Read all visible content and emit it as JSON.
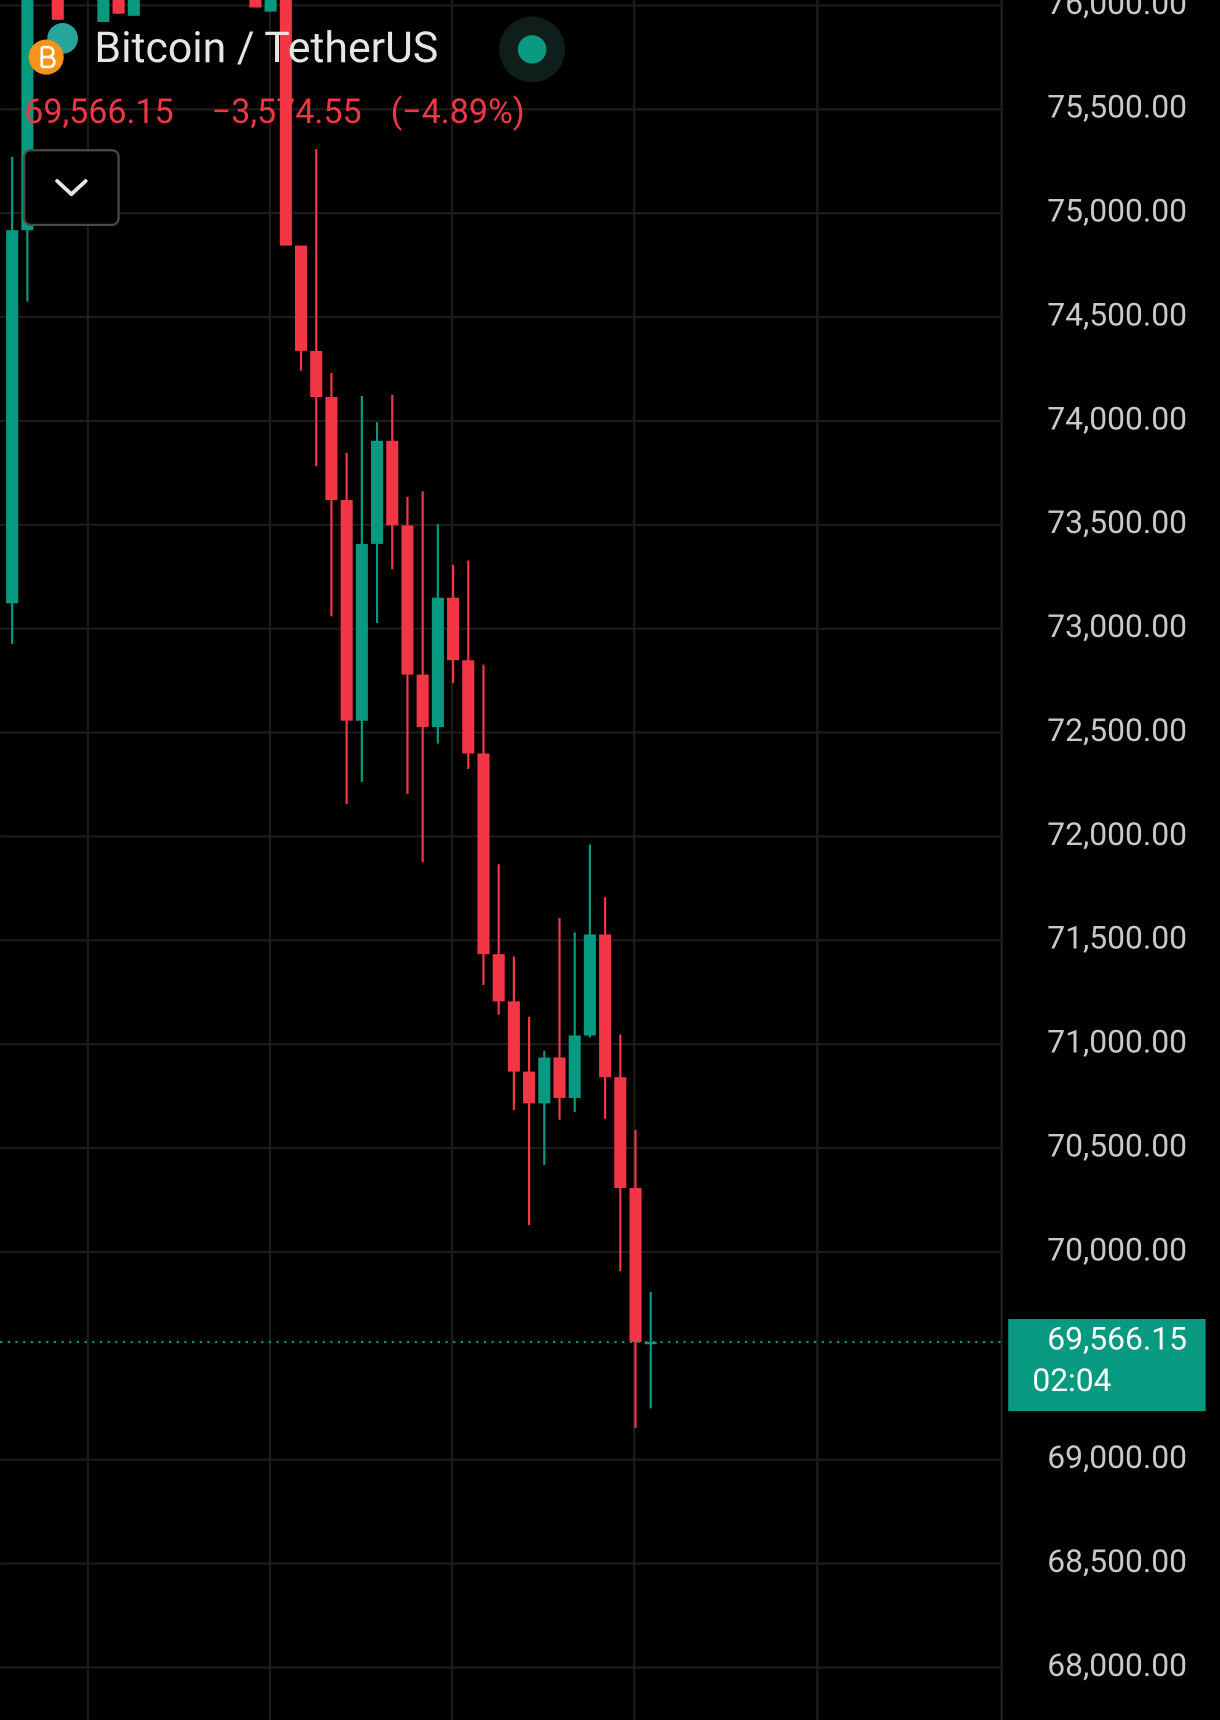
{
  "chart_data": {
    "type": "candlestick",
    "title": "Bitcoin / TetherUS",
    "last_price": {
      "value": 69566.15,
      "label": "69,566.15"
    },
    "change": "−3,574.55",
    "change_percent": "(−4.89%)",
    "countdown": "02:04",
    "up_color": "#089981",
    "down_color": "#f23645",
    "grid": true,
    "categories": [
      null,
      null,
      null,
      null,
      null,
      null,
      null,
      null,
      null,
      null,
      null,
      null,
      null,
      null,
      null,
      null,
      null,
      null,
      null,
      null,
      null,
      null,
      null,
      null,
      null,
      null,
      null,
      null,
      null,
      null,
      null,
      null,
      null,
      null,
      null,
      null,
      null,
      null,
      null,
      null,
      null,
      null,
      null
    ],
    "open": [
      73122,
      74918,
      null,
      76300,
      null,
      null,
      75920,
      76300,
      75950,
      null,
      null,
      null,
      null,
      null,
      null,
      null,
      76300,
      75970,
      76100,
      74844,
      74337,
      74115,
      73619,
      72557,
      73408,
      73904,
      73497,
      72779,
      72526,
      73149,
      72848,
      72399,
      71433,
      71206,
      70868,
      70715,
      70936,
      70741,
      71042,
      71528,
      70841,
      70308,
      69560
    ],
    "high": [
      75271,
      76200,
      null,
      76400,
      null,
      null,
      76400,
      76400,
      76400,
      null,
      null,
      null,
      null,
      null,
      null,
      null,
      76400,
      76400,
      76300,
      74844,
      75308,
      74231,
      73846,
      74120,
      73994,
      74126,
      73635,
      73661,
      73503,
      73307,
      73328,
      72827,
      71866,
      71422,
      71132,
      70968,
      71607,
      71538,
      71961,
      71707,
      71047,
      70588,
      69807
    ],
    "low": [
      72927,
      74574,
      null,
      75931,
      null,
      null,
      75920,
      75960,
      75950,
      null,
      null,
      null,
      null,
      null,
      null,
      null,
      75990,
      75970,
      74844,
      74242,
      73782,
      73059,
      72156,
      72262,
      73027,
      73286,
      72204,
      71876,
      72447,
      72737,
      72325,
      71285,
      71142,
      70683,
      70129,
      70419,
      70636,
      70673,
      71032,
      70641,
      69907,
      69152,
      69247
    ],
    "close": [
      74918,
      76100,
      null,
      75931,
      null,
      null,
      76300,
      75960,
      76300,
      null,
      null,
      null,
      null,
      null,
      null,
      null,
      75990,
      76300,
      74844,
      74337,
      74115,
      73619,
      72557,
      73408,
      73904,
      73497,
      72779,
      72526,
      73149,
      72848,
      72399,
      71433,
      71206,
      70868,
      70715,
      70936,
      70741,
      71042,
      71528,
      70841,
      70308,
      69566.15,
      69566.15
    ],
    "ylim": [
      67747,
      76026
    ],
    "yticks": [
      {
        "value": 68000,
        "label": "68,000.00"
      },
      {
        "value": 68500,
        "label": "68,500.00"
      },
      {
        "value": 69000,
        "label": "69,000.00"
      },
      {
        "value": 70000,
        "label": "70,000.00"
      },
      {
        "value": 70500,
        "label": "70,500.00"
      },
      {
        "value": 71000,
        "label": "71,000.00"
      },
      {
        "value": 71500,
        "label": "71,500.00"
      },
      {
        "value": 72000,
        "label": "72,000.00"
      },
      {
        "value": 72500,
        "label": "72,500.00"
      },
      {
        "value": 73000,
        "label": "73,000.00"
      },
      {
        "value": 73500,
        "label": "73,500.00"
      },
      {
        "value": 74000,
        "label": "74,000.00"
      },
      {
        "value": 74500,
        "label": "74,500.00"
      },
      {
        "value": 75000,
        "label": "75,000.00"
      },
      {
        "value": 75500,
        "label": "75,500.00"
      },
      {
        "value": 76000,
        "label": "76,000.00"
      }
    ]
  }
}
